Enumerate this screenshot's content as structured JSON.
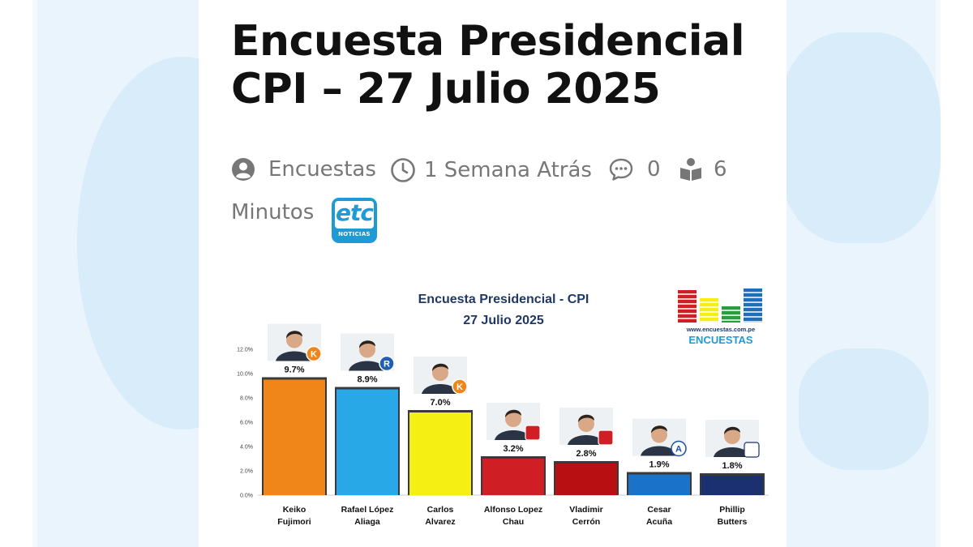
{
  "article": {
    "title_line1": "Encuesta Presidencial",
    "title_line2": "CPI – 27 Julio 2025",
    "author": "Encuestas",
    "time_ago": "1 Semana Atrás",
    "comments": "0",
    "read_time_num": "6",
    "read_time_unit": "Minutos",
    "badge": {
      "big": "etc",
      "small": "NOTICIAS"
    }
  },
  "colors": {
    "accent": "#1e9bd7",
    "title": "#111111",
    "meta": "#777777"
  },
  "chart_data": {
    "type": "bar",
    "title": "Encuesta Presidencial - CPI",
    "subtitle": "27 Julio 2025",
    "logo_url_text": "www.encuestas.com.pe",
    "logo_text": "ENCUESTAS",
    "categories": [
      [
        "Keiko",
        "Fujimori"
      ],
      [
        "Rafael López",
        "Aliaga"
      ],
      [
        "Carlos",
        "Alvarez"
      ],
      [
        "Alfonso Lopez",
        "Chau"
      ],
      [
        "Vladimir",
        "Cerrón"
      ],
      [
        "Cesar",
        "Acuña"
      ],
      [
        "Phillip",
        "Butters"
      ]
    ],
    "values": [
      9.7,
      8.9,
      7.0,
      3.2,
      2.8,
      1.9,
      1.8
    ],
    "value_labels": [
      "9.7%",
      "8.9%",
      "7.0%",
      "3.2%",
      "2.8%",
      "1.9%",
      "1.8%"
    ],
    "bar_colors": [
      "#f0861a",
      "#29a8e8",
      "#f5ef14",
      "#d01f24",
      "#b80f12",
      "#1a73c9",
      "#1b3070"
    ],
    "party_badges": [
      "K",
      "R",
      "K",
      "",
      "",
      "A",
      ""
    ],
    "yticks": [
      "0.0%",
      "2.0%",
      "4.0%",
      "6.0%",
      "8.0%",
      "10.0%",
      "12.0%"
    ],
    "ylim": [
      0,
      12
    ],
    "grid": false,
    "legend": "none"
  }
}
